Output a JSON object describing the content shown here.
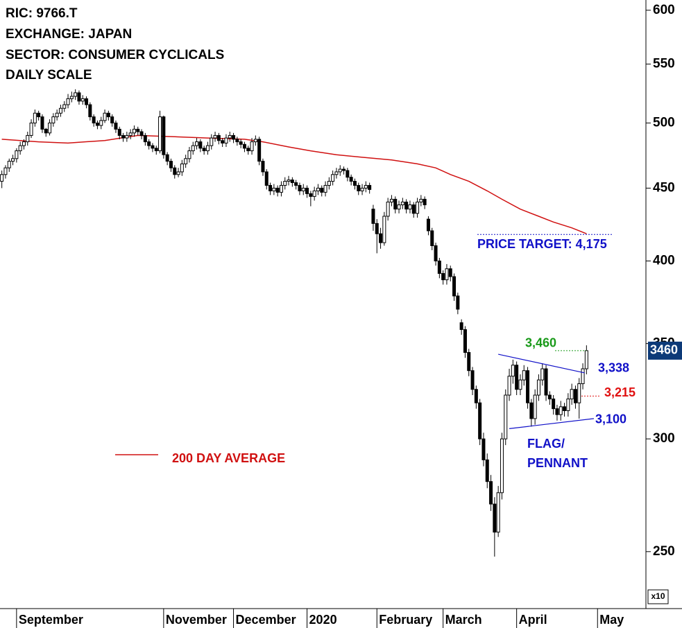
{
  "chart_data": {
    "type": "candlestick",
    "header": [
      "RIC: 9766.T",
      "EXCHANGE: JAPAN",
      "SECTOR: CONSUMER CYCLICALS",
      "DAILY SCALE"
    ],
    "axis_multiplier": "x10",
    "log_scale": true,
    "ylim": [
      228,
      610
    ],
    "yticks": [
      250,
      300,
      350,
      400,
      450,
      500,
      550,
      600
    ],
    "up_color": "#ffffff",
    "down_color": "#000000",
    "categories": [
      null,
      null,
      null,
      null,
      "September",
      null,
      null,
      null,
      null,
      null,
      null,
      null,
      null,
      null,
      null,
      null,
      null,
      null,
      null,
      null,
      null,
      null,
      null,
      null,
      null,
      null,
      null,
      null,
      null,
      null,
      null,
      null,
      null,
      null,
      null,
      null,
      null,
      null,
      null,
      null,
      null,
      null,
      null,
      null,
      "November",
      null,
      null,
      null,
      null,
      null,
      null,
      null,
      null,
      null,
      null,
      null,
      null,
      null,
      null,
      null,
      null,
      null,
      null,
      "December",
      null,
      null,
      null,
      null,
      null,
      null,
      null,
      null,
      null,
      null,
      null,
      null,
      null,
      null,
      null,
      null,
      null,
      null,
      null,
      "2020",
      null,
      null,
      null,
      null,
      null,
      null,
      null,
      null,
      null,
      null,
      null,
      null,
      null,
      null,
      null,
      null,
      null,
      null,
      "February",
      null,
      null,
      null,
      null,
      null,
      null,
      null,
      null,
      null,
      null,
      null,
      null,
      null,
      null,
      null,
      null,
      null,
      "March",
      null,
      null,
      null,
      null,
      null,
      null,
      null,
      null,
      null,
      null,
      null,
      null,
      null,
      null,
      null,
      null,
      null,
      null,
      null,
      "April",
      null,
      null,
      null,
      null,
      null,
      null,
      null,
      null,
      null,
      null,
      null,
      null,
      null,
      null,
      null,
      null,
      null,
      null,
      null,
      null,
      null,
      "May",
      null
    ],
    "values": [
      [
        455,
        463,
        450,
        460
      ],
      [
        460,
        467,
        457,
        465
      ],
      [
        465,
        472,
        462,
        470
      ],
      [
        470,
        475,
        467,
        472
      ],
      [
        472,
        480,
        469,
        478
      ],
      [
        478,
        485,
        475,
        482
      ],
      [
        482,
        487,
        479,
        485
      ],
      [
        485,
        493,
        482,
        490
      ],
      [
        490,
        503,
        488,
        500
      ],
      [
        500,
        511,
        497,
        508
      ],
      [
        508,
        510,
        502,
        505
      ],
      [
        505,
        507,
        492,
        495
      ],
      [
        495,
        496,
        489,
        492
      ],
      [
        492,
        503,
        490,
        500
      ],
      [
        500,
        508,
        497,
        505
      ],
      [
        505,
        511,
        502,
        508
      ],
      [
        508,
        515,
        505,
        512
      ],
      [
        512,
        518,
        509,
        515
      ],
      [
        515,
        524,
        512,
        520
      ],
      [
        520,
        526,
        517,
        522
      ],
      [
        522,
        528,
        519,
        525
      ],
      [
        525,
        527,
        515,
        518
      ],
      [
        518,
        523,
        515,
        520
      ],
      [
        520,
        522,
        512,
        515
      ],
      [
        515,
        517,
        502,
        505
      ],
      [
        505,
        507,
        497,
        500
      ],
      [
        500,
        502,
        495,
        498
      ],
      [
        498,
        505,
        495,
        502
      ],
      [
        502,
        511,
        500,
        508
      ],
      [
        508,
        510,
        502,
        505
      ],
      [
        505,
        507,
        497,
        500
      ],
      [
        500,
        502,
        492,
        495
      ],
      [
        495,
        497,
        487,
        490
      ],
      [
        490,
        492,
        485,
        488
      ],
      [
        488,
        493,
        485,
        490
      ],
      [
        490,
        495,
        487,
        492
      ],
      [
        492,
        498,
        489,
        495
      ],
      [
        495,
        497,
        490,
        493
      ],
      [
        493,
        495,
        487,
        490
      ],
      [
        490,
        492,
        482,
        485
      ],
      [
        485,
        487,
        479,
        482
      ],
      [
        482,
        484,
        477,
        480
      ],
      [
        480,
        482,
        475,
        478
      ],
      [
        478,
        510,
        476,
        505
      ],
      [
        505,
        506,
        472,
        475
      ],
      [
        475,
        477,
        467,
        470
      ],
      [
        470,
        472,
        462,
        465
      ],
      [
        465,
        467,
        457,
        460
      ],
      [
        460,
        465,
        458,
        462
      ],
      [
        462,
        471,
        459,
        468
      ],
      [
        468,
        475,
        465,
        472
      ],
      [
        472,
        481,
        469,
        478
      ],
      [
        478,
        485,
        475,
        482
      ],
      [
        482,
        488,
        479,
        485
      ],
      [
        485,
        487,
        477,
        480
      ],
      [
        480,
        482,
        475,
        478
      ],
      [
        478,
        485,
        475,
        482
      ],
      [
        482,
        491,
        479,
        488
      ],
      [
        488,
        493,
        485,
        490
      ],
      [
        490,
        492,
        483,
        486
      ],
      [
        486,
        488,
        481,
        484
      ],
      [
        484,
        491,
        481,
        488
      ],
      [
        488,
        493,
        485,
        490
      ],
      [
        490,
        492,
        484,
        487
      ],
      [
        487,
        489,
        482,
        485
      ],
      [
        485,
        487,
        480,
        483
      ],
      [
        483,
        485,
        477,
        480
      ],
      [
        480,
        482,
        475,
        478
      ],
      [
        478,
        488,
        475,
        485
      ],
      [
        485,
        490,
        482,
        487
      ],
      [
        487,
        489,
        467,
        470
      ],
      [
        470,
        472,
        459,
        462
      ],
      [
        462,
        464,
        449,
        452
      ],
      [
        452,
        454,
        445,
        448
      ],
      [
        448,
        453,
        445,
        450
      ],
      [
        450,
        452,
        444,
        447
      ],
      [
        447,
        455,
        444,
        452
      ],
      [
        452,
        458,
        449,
        455
      ],
      [
        455,
        459,
        452,
        456
      ],
      [
        456,
        458,
        451,
        454
      ],
      [
        454,
        456,
        449,
        452
      ],
      [
        452,
        454,
        445,
        448
      ],
      [
        448,
        453,
        445,
        450
      ],
      [
        450,
        452,
        443,
        446
      ],
      [
        446,
        448,
        437,
        444
      ],
      [
        444,
        451,
        441,
        448
      ],
      [
        448,
        453,
        445,
        450
      ],
      [
        450,
        452,
        444,
        447
      ],
      [
        447,
        455,
        444,
        452
      ],
      [
        452,
        458,
        449,
        455
      ],
      [
        455,
        463,
        452,
        460
      ],
      [
        460,
        465,
        457,
        462
      ],
      [
        462,
        467,
        459,
        464
      ],
      [
        464,
        466,
        460,
        463
      ],
      [
        463,
        465,
        455,
        458
      ],
      [
        458,
        460,
        452,
        455
      ],
      [
        455,
        457,
        449,
        452
      ],
      [
        452,
        454,
        445,
        448
      ],
      [
        448,
        453,
        445,
        450
      ],
      [
        450,
        455,
        447,
        452
      ],
      [
        452,
        454,
        446,
        449
      ],
      [
        435,
        438,
        420,
        425
      ],
      [
        425,
        428,
        405,
        418
      ],
      [
        418,
        422,
        408,
        412
      ],
      [
        412,
        433,
        410,
        430
      ],
      [
        430,
        443,
        427,
        440
      ],
      [
        440,
        445,
        437,
        442
      ],
      [
        442,
        444,
        432,
        435
      ],
      [
        435,
        441,
        432,
        438
      ],
      [
        438,
        443,
        435,
        440
      ],
      [
        440,
        442,
        432,
        435
      ],
      [
        435,
        441,
        432,
        438
      ],
      [
        438,
        440,
        429,
        432
      ],
      [
        432,
        443,
        429,
        440
      ],
      [
        440,
        445,
        437,
        442
      ],
      [
        442,
        444,
        435,
        438
      ],
      [
        428,
        430,
        417,
        420
      ],
      [
        420,
        422,
        407,
        410
      ],
      [
        410,
        412,
        397,
        400
      ],
      [
        400,
        402,
        389,
        392
      ],
      [
        392,
        394,
        385,
        388
      ],
      [
        388,
        398,
        385,
        395
      ],
      [
        395,
        397,
        387,
        390
      ],
      [
        390,
        392,
        375,
        378
      ],
      [
        378,
        380,
        367,
        370
      ],
      [
        362,
        364,
        355,
        358
      ],
      [
        358,
        360,
        342,
        345
      ],
      [
        345,
        347,
        332,
        335
      ],
      [
        335,
        337,
        322,
        325
      ],
      [
        325,
        327,
        315,
        318
      ],
      [
        318,
        320,
        297,
        300
      ],
      [
        300,
        303,
        287,
        290
      ],
      [
        290,
        293,
        277,
        280
      ],
      [
        280,
        283,
        267,
        270
      ],
      [
        270,
        273,
        248,
        258
      ],
      [
        258,
        278,
        256,
        275
      ],
      [
        275,
        303,
        272,
        300
      ],
      [
        300,
        325,
        297,
        322
      ],
      [
        322,
        336,
        319,
        332
      ],
      [
        332,
        341,
        328,
        338
      ],
      [
        338,
        340,
        322,
        325
      ],
      [
        325,
        333,
        322,
        330
      ],
      [
        330,
        338,
        327,
        335
      ],
      [
        335,
        337,
        315,
        318
      ],
      [
        318,
        320,
        306,
        310
      ],
      [
        310,
        325,
        307,
        322
      ],
      [
        322,
        333,
        319,
        330
      ],
      [
        330,
        339,
        327,
        336
      ],
      [
        336,
        338,
        319,
        322
      ],
      [
        322,
        324,
        317,
        320
      ],
      [
        320,
        322,
        312,
        315
      ],
      [
        315,
        317,
        309,
        312
      ],
      [
        312,
        319,
        309,
        316
      ],
      [
        316,
        318,
        311,
        314
      ],
      [
        314,
        323,
        311,
        320
      ],
      [
        320,
        328,
        317,
        325
      ],
      [
        325,
        327,
        315,
        318
      ],
      [
        318,
        331,
        310,
        328
      ],
      [
        328,
        339,
        325,
        336
      ],
      [
        336,
        349,
        333,
        346
      ],
      null,
      null,
      null,
      null
    ],
    "moving_average": {
      "name": "200 DAY AVERAGE",
      "color": "#d01010",
      "x": [
        0,
        10,
        18,
        28,
        37,
        47,
        56,
        66,
        71,
        78,
        84,
        91,
        98,
        106,
        113,
        118,
        122,
        127,
        132,
        136,
        141,
        146,
        150,
        155,
        159
      ],
      "values": [
        487,
        485,
        484,
        486,
        490,
        489,
        488,
        487,
        485,
        481,
        478,
        475,
        473,
        471,
        468,
        465,
        460,
        455,
        448,
        442,
        435,
        430,
        426,
        422,
        418
      ]
    },
    "trendlines": [
      {
        "color": "#1010c8",
        "x": [
          135,
          158.5
        ],
        "values": [
          344,
          333.8
        ]
      },
      {
        "color": "#1010c8",
        "x": [
          138,
          161
        ],
        "values": [
          305,
          310
        ]
      }
    ],
    "annotations": [
      {
        "label": "PRICE TARGET: 4,175",
        "value": 417.5,
        "color": "#1010c8"
      },
      {
        "label": "3,460",
        "value": 346,
        "color": "#1a9a1a"
      },
      {
        "label": "3,338",
        "value": 333.8,
        "color": "#1010c8"
      },
      {
        "label": "3,215",
        "value": 321.5,
        "color": "#e01010"
      },
      {
        "label": "3,100",
        "value": 310,
        "color": "#1010c8"
      }
    ],
    "pattern_label": [
      "FLAG/",
      "PENNANT"
    ],
    "pattern_color": "#1010c8",
    "last_price": {
      "value": 346,
      "label": "3460",
      "color": "#0d3a78"
    }
  }
}
